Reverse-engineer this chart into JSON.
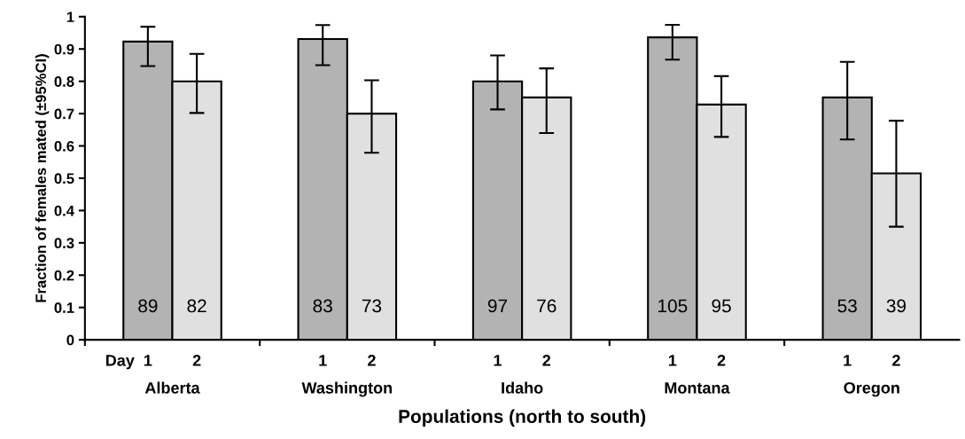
{
  "chart_data": {
    "type": "bar",
    "xlabel": "Populations (north to south)",
    "ylabel": "Fraction of females mated (±95%CI)",
    "categories": [
      "Alberta",
      "Washington",
      "Idaho",
      "Montana",
      "Oregon"
    ],
    "series": [
      {
        "name": "1",
        "color": "#b3b3b3",
        "values": [
          0.923,
          0.931,
          0.8,
          0.936,
          0.75
        ],
        "errors": [
          [
            0.847,
            0.969
          ],
          [
            0.85,
            0.974
          ],
          [
            0.713,
            0.88
          ],
          [
            0.867,
            0.975
          ],
          [
            0.62,
            0.86
          ]
        ]
      },
      {
        "name": "2",
        "color": "#e0e0e0",
        "values": [
          0.8,
          0.7,
          0.75,
          0.728,
          0.515
        ],
        "errors": [
          [
            0.702,
            0.885
          ],
          [
            0.579,
            0.803
          ],
          [
            0.64,
            0.84
          ],
          [
            0.628,
            0.816
          ],
          [
            0.35,
            0.678
          ]
        ]
      }
    ],
    "annotations": [
      "Day",
      {
        "text": "89",
        "x": "Alberta",
        "y": 0.1
      },
      {
        "text": "82",
        "x": "Alberta",
        "y": 0.1
      },
      {
        "text": "83",
        "x": "Washington",
        "y": 0.1
      },
      {
        "text": "73",
        "x": "Washington",
        "y": 0.1
      },
      {
        "text": "97",
        "x": "Idaho",
        "y": 0.1
      },
      {
        "text": "76",
        "x": "Idaho",
        "y": 0.1
      },
      {
        "text": "105",
        "x": "Montana",
        "y": 0.1
      },
      {
        "text": "95",
        "x": "Montana",
        "y": 0.1
      },
      {
        "text": "53",
        "x": "Oregon",
        "y": 0.1
      },
      {
        "text": "39",
        "x": "Oregon",
        "y": 0.1
      }
    ],
    "ylim": [
      0,
      1
    ],
    "yticks": [
      0,
      0.1,
      0.2,
      0.3,
      0.4,
      0.5,
      0.6,
      0.7,
      0.8,
      0.9,
      1
    ],
    "grid": false,
    "legend": false
  }
}
